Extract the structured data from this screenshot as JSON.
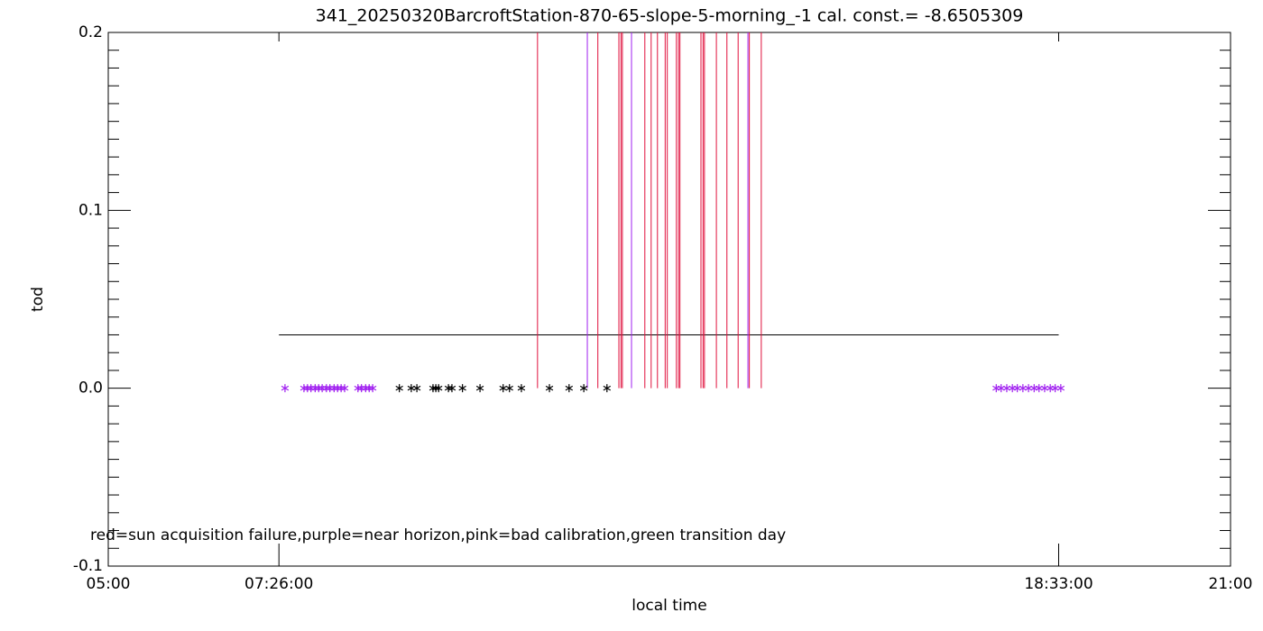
{
  "chart_data": {
    "type": "scatter",
    "title": "341_20250320BarcroftStation-870-65-slope-5-morning_-1 cal. const.= -8.6505309",
    "x_label": "local time",
    "y_label": "tod",
    "annotation": "red=sun acquisition failure,purple=near horizon,pink=bad calibration,green transition day",
    "xlim": [
      5,
      21
    ],
    "ylim": [
      -0.1,
      0.2
    ],
    "xticks": [
      {
        "value": 5,
        "label": "05:00"
      },
      {
        "value": 7.4333,
        "label": "07:26:00"
      },
      {
        "value": 18.55,
        "label": "18:33:00"
      },
      {
        "value": 21,
        "label": "21:00"
      }
    ],
    "yticks": [
      -0.1,
      {
        "value": 0,
        "label": "0.0"
      },
      0.1,
      0.2
    ],
    "yminorticks": [
      -0.09,
      -0.08,
      -0.07,
      -0.06,
      -0.05,
      -0.04,
      -0.03,
      -0.02,
      -0.01,
      0.01,
      0.02,
      0.03,
      0.04,
      0.05,
      0.06,
      0.07,
      0.08,
      0.09,
      0.11,
      0.12,
      0.13,
      0.14,
      0.15,
      0.16,
      0.17,
      0.18,
      0.19
    ],
    "reference_line": {
      "color": "#000000",
      "x": [
        7.4333,
        18.55
      ],
      "values": [
        0.03,
        0.03
      ]
    },
    "vertical_lines": [
      {
        "color": "#e0103c",
        "x": [
          11.12,
          11.98,
          12.28,
          12.31,
          12.33,
          12.65,
          12.74,
          12.83,
          12.94,
          12.97,
          13.1,
          13.13,
          13.15,
          13.45,
          13.48,
          13.5,
          13.67,
          13.82,
          13.98,
          14.14,
          14.31
        ],
        "values": [
          0.2,
          0.2,
          0.2,
          0.2,
          0.2,
          0.2,
          0.2,
          0.2,
          0.2,
          0.2,
          0.2,
          0.2,
          0.2,
          0.2,
          0.2,
          0.2,
          0.2,
          0.2,
          0.2,
          0.2,
          0.2
        ]
      },
      {
        "color": "#a020f0",
        "x": [
          11.83,
          12.46,
          14.12
        ],
        "values": [
          0.2,
          0.2,
          0.2
        ]
      }
    ],
    "series": [
      {
        "color": "#a020f0",
        "x": [
          7.52,
          7.79,
          7.84,
          7.89,
          7.95,
          8.0,
          8.05,
          8.11,
          8.16,
          8.22,
          8.27,
          8.32,
          8.37,
          8.56,
          8.61,
          8.67,
          8.72,
          8.77,
          17.66,
          17.73,
          17.81,
          17.89,
          17.96,
          18.04,
          18.12,
          18.2,
          18.27,
          18.35,
          18.43,
          18.5,
          18.58
        ],
        "values": [
          0,
          0,
          0,
          0,
          0,
          0,
          0,
          0,
          0,
          0,
          0,
          0,
          0,
          0,
          0,
          0,
          0,
          0,
          0,
          0,
          0,
          0,
          0,
          0,
          0,
          0,
          0,
          0,
          0,
          0,
          0
        ]
      },
      {
        "color": "#000000",
        "x": [
          9.15,
          9.32,
          9.4,
          9.63,
          9.67,
          9.71,
          9.85,
          9.9,
          10.05,
          10.3,
          10.63,
          10.72,
          10.89,
          11.29,
          11.57,
          11.78,
          12.11
        ],
        "values": [
          0,
          0,
          0,
          0,
          0,
          0,
          0,
          0,
          0,
          0,
          0,
          0,
          0,
          0,
          0,
          0,
          0
        ]
      }
    ]
  }
}
